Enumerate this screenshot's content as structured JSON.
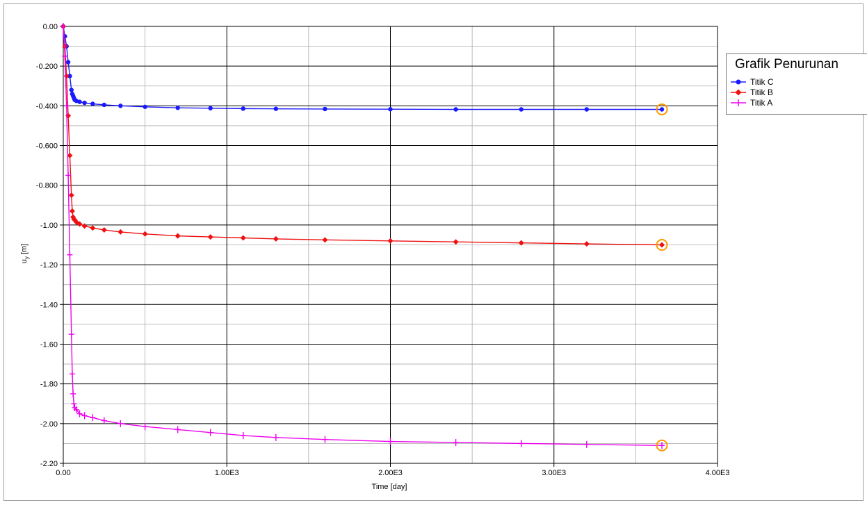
{
  "chart_data": {
    "type": "line",
    "xlabel": "Time [day]",
    "ylabel_main": "u",
    "ylabel_sub": "y",
    "ylabel_unit": " [m]",
    "xlim": [
      0,
      4000
    ],
    "ylim": [
      -2.2,
      0
    ],
    "grid": true,
    "legend_position": "right",
    "x_ticks": [
      {
        "value": 0,
        "label": "0.00"
      },
      {
        "value": 1000,
        "label": "1.00E3"
      },
      {
        "value": 2000,
        "label": "2.00E3"
      },
      {
        "value": 3000,
        "label": "3.00E3"
      },
      {
        "value": 4000,
        "label": "4.00E3"
      }
    ],
    "y_ticks": [
      {
        "value": 0,
        "label": "0.00"
      },
      {
        "value": -0.2,
        "label": "-0.200"
      },
      {
        "value": -0.4,
        "label": "-0.400"
      },
      {
        "value": -0.6,
        "label": "-0.600"
      },
      {
        "value": -0.8,
        "label": "-0.800"
      },
      {
        "value": -1.0,
        "label": "-1.00"
      },
      {
        "value": -1.2,
        "label": "-1.20"
      },
      {
        "value": -1.4,
        "label": "-1.40"
      },
      {
        "value": -1.6,
        "label": "-1.60"
      },
      {
        "value": -1.8,
        "label": "-1.80"
      },
      {
        "value": -2.0,
        "label": "-2.00"
      },
      {
        "value": -2.2,
        "label": "-2.20"
      }
    ],
    "series": [
      {
        "name": "Titik C",
        "color": "#1a1aff",
        "marker": "circle",
        "x": [
          0,
          10,
          20,
          30,
          40,
          50,
          55,
          60,
          65,
          70,
          80,
          100,
          130,
          180,
          250,
          350,
          500,
          700,
          900,
          1100,
          1300,
          1600,
          2000,
          2400,
          2800,
          3200,
          3660
        ],
        "y": [
          0,
          -0.05,
          -0.1,
          -0.18,
          -0.25,
          -0.32,
          -0.34,
          -0.35,
          -0.36,
          -0.37,
          -0.375,
          -0.38,
          -0.385,
          -0.39,
          -0.395,
          -0.4,
          -0.405,
          -0.41,
          -0.412,
          -0.414,
          -0.415,
          -0.416,
          -0.417,
          -0.418,
          -0.418,
          -0.418,
          -0.418
        ]
      },
      {
        "name": "Titik B",
        "color": "#ee1111",
        "marker": "diamond",
        "x": [
          0,
          10,
          20,
          30,
          40,
          50,
          55,
          60,
          65,
          70,
          80,
          100,
          130,
          180,
          250,
          350,
          500,
          700,
          900,
          1100,
          1300,
          1600,
          2000,
          2400,
          2800,
          3200,
          3660
        ],
        "y": [
          0,
          -0.1,
          -0.25,
          -0.45,
          -0.65,
          -0.85,
          -0.93,
          -0.96,
          -0.97,
          -0.975,
          -0.985,
          -0.995,
          -1.005,
          -1.015,
          -1.025,
          -1.035,
          -1.045,
          -1.055,
          -1.06,
          -1.065,
          -1.07,
          -1.075,
          -1.08,
          -1.085,
          -1.09,
          -1.095,
          -1.1
        ]
      },
      {
        "name": "Titik A",
        "color": "#ee00ee",
        "marker": "plus",
        "x": [
          0,
          10,
          20,
          30,
          40,
          50,
          55,
          60,
          65,
          70,
          80,
          100,
          130,
          180,
          250,
          350,
          500,
          700,
          900,
          1100,
          1300,
          1600,
          2000,
          2400,
          2800,
          3200,
          3660
        ],
        "y": [
          0,
          -0.15,
          -0.4,
          -0.75,
          -1.15,
          -1.55,
          -1.75,
          -1.85,
          -1.9,
          -1.92,
          -1.93,
          -1.95,
          -1.96,
          -1.97,
          -1.985,
          -2.0,
          -2.015,
          -2.03,
          -2.045,
          -2.06,
          -2.07,
          -2.08,
          -2.09,
          -2.095,
          -2.1,
          -2.105,
          -2.11
        ]
      }
    ]
  },
  "legend": {
    "title": "Grafik Penurunan",
    "items": [
      "Titik C",
      "Titik B",
      "Titik A"
    ]
  }
}
